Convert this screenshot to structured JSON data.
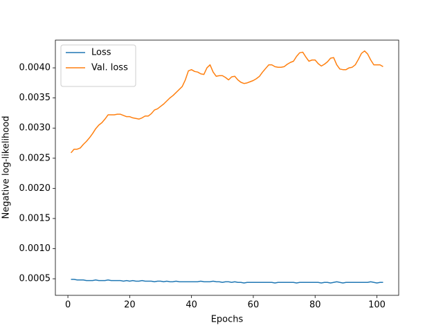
{
  "chart_data": {
    "type": "line",
    "xlabel": "Epochs",
    "ylabel": "Negative log-likelihood",
    "x": [
      1,
      2,
      3,
      4,
      5,
      6,
      7,
      8,
      9,
      10,
      11,
      12,
      13,
      14,
      15,
      16,
      17,
      18,
      19,
      20,
      21,
      22,
      23,
      24,
      25,
      26,
      27,
      28,
      29,
      30,
      31,
      32,
      33,
      34,
      35,
      36,
      37,
      38,
      39,
      40,
      41,
      42,
      43,
      44,
      45,
      46,
      47,
      48,
      49,
      50,
      51,
      52,
      53,
      54,
      55,
      56,
      57,
      58,
      59,
      60,
      61,
      62,
      63,
      64,
      65,
      66,
      67,
      68,
      69,
      70,
      71,
      72,
      73,
      74,
      75,
      76,
      77,
      78,
      79,
      80,
      81,
      82,
      83,
      84,
      85,
      86,
      87,
      88,
      89,
      90,
      91,
      92,
      93,
      94,
      95,
      96,
      97,
      98,
      99,
      100,
      101,
      102
    ],
    "series": [
      {
        "name": "Loss",
        "color": "#1f77b4",
        "values": [
          0.00049,
          0.00049,
          0.00048,
          0.00048,
          0.00048,
          0.00047,
          0.00047,
          0.00047,
          0.00048,
          0.00047,
          0.00047,
          0.00047,
          0.00048,
          0.00047,
          0.00047,
          0.00047,
          0.00047,
          0.00046,
          0.00047,
          0.00046,
          0.00047,
          0.00046,
          0.00046,
          0.00047,
          0.00046,
          0.00046,
          0.00046,
          0.00045,
          0.00046,
          0.00046,
          0.00045,
          0.00046,
          0.00045,
          0.00045,
          0.00046,
          0.00045,
          0.00045,
          0.00045,
          0.00045,
          0.00045,
          0.00045,
          0.00045,
          0.00046,
          0.00045,
          0.00045,
          0.00045,
          0.00046,
          0.00045,
          0.00045,
          0.00044,
          0.00045,
          0.00045,
          0.00044,
          0.00045,
          0.00044,
          0.00044,
          0.00043,
          0.00044,
          0.00044,
          0.00044,
          0.00044,
          0.00044,
          0.00044,
          0.00044,
          0.00044,
          0.00044,
          0.00043,
          0.00044,
          0.00044,
          0.00044,
          0.00044,
          0.00044,
          0.00044,
          0.00043,
          0.00044,
          0.00044,
          0.00044,
          0.00044,
          0.00044,
          0.00044,
          0.00044,
          0.00043,
          0.00044,
          0.00044,
          0.00043,
          0.00044,
          0.00045,
          0.00044,
          0.00043,
          0.00044,
          0.00044,
          0.00044,
          0.00044,
          0.00044,
          0.00044,
          0.00044,
          0.00044,
          0.00045,
          0.00044,
          0.00043,
          0.00044,
          0.00044
        ]
      },
      {
        "name": "Val. loss",
        "color": "#ff7f0e",
        "values": [
          0.00259,
          0.00265,
          0.00265,
          0.00267,
          0.00273,
          0.00278,
          0.00284,
          0.00291,
          0.00299,
          0.00305,
          0.00309,
          0.00315,
          0.00322,
          0.00322,
          0.00322,
          0.00323,
          0.00323,
          0.00321,
          0.00319,
          0.00319,
          0.00317,
          0.00316,
          0.00315,
          0.00317,
          0.0032,
          0.0032,
          0.00324,
          0.0033,
          0.00332,
          0.00336,
          0.0034,
          0.00345,
          0.0035,
          0.00354,
          0.00359,
          0.00364,
          0.00369,
          0.0038,
          0.00395,
          0.00397,
          0.00394,
          0.00393,
          0.0039,
          0.00389,
          0.004,
          0.00405,
          0.00393,
          0.00386,
          0.00387,
          0.00387,
          0.00384,
          0.0038,
          0.00385,
          0.00386,
          0.0038,
          0.00376,
          0.00374,
          0.00375,
          0.00377,
          0.00379,
          0.00382,
          0.00386,
          0.00393,
          0.00399,
          0.00405,
          0.00405,
          0.00402,
          0.00401,
          0.00401,
          0.00402,
          0.00406,
          0.00409,
          0.00411,
          0.00419,
          0.00425,
          0.00426,
          0.00418,
          0.00411,
          0.00413,
          0.00413,
          0.00407,
          0.00403,
          0.00406,
          0.0041,
          0.00416,
          0.00417,
          0.00405,
          0.00398,
          0.00397,
          0.00397,
          0.004,
          0.00401,
          0.00405,
          0.00414,
          0.00424,
          0.00428,
          0.00423,
          0.00413,
          0.00405,
          0.00405,
          0.00405,
          0.00402
        ]
      }
    ],
    "xlim": [
      -4.05,
      107.05
    ],
    "xticks": [
      0,
      20,
      40,
      60,
      80,
      100
    ],
    "ylim": [
      0.000225,
      0.00446
    ],
    "yticks": [
      0.0005,
      {
        "value": 0.001,
        "label": "0.0010"
      },
      0.0015,
      {
        "value": 0.002,
        "label": "0.0020"
      },
      0.0025,
      {
        "value": 0.003,
        "label": "0.0030"
      },
      0.0035,
      {
        "value": 0.004,
        "label": "0.0040"
      }
    ],
    "legend": "upper left",
    "grid": false
  }
}
